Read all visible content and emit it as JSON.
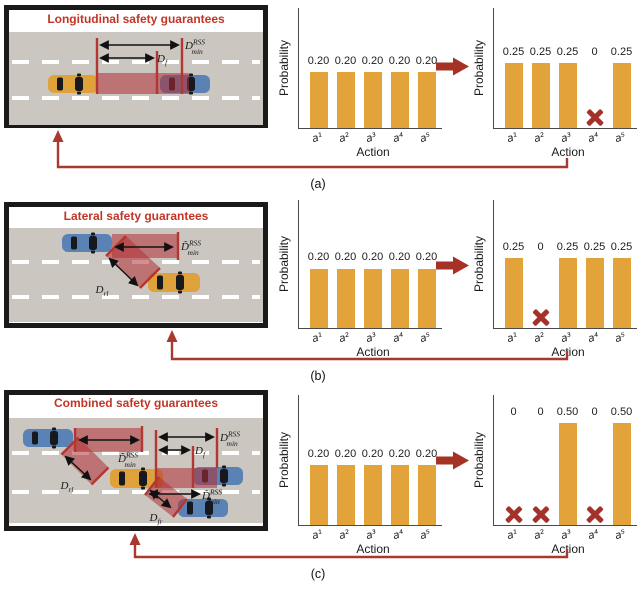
{
  "figure": {
    "captions": {
      "a": "(a)",
      "b": "(b)",
      "c": "(c)"
    },
    "icons": {
      "mask": "x-mark-icon",
      "transform": "arrow-right-icon",
      "ego_pointer": "arrow-up-icon"
    }
  },
  "panels": [
    {
      "title": "Longitudinal safety guarantees",
      "caption": "(a)",
      "labels": {
        "d_min_rss": {
          "base": "D",
          "sup": "RSS",
          "sub": "min"
        },
        "d_f": {
          "base": "D",
          "sub": "f"
        }
      }
    },
    {
      "title": "Lateral safety guarantees",
      "caption": "(b)",
      "labels": {
        "d_min_rss_lat": {
          "base": "D̃",
          "sup": "RSS",
          "sub": "min"
        },
        "d_rl": {
          "base": "D",
          "sub": "rl"
        }
      }
    },
    {
      "title": "Combined safety guarantees",
      "caption": "(c)",
      "labels": {
        "d_min_rss_lat_rear": {
          "base": "D̃",
          "sup": "RSS",
          "sub": "min"
        },
        "d_rl": {
          "base": "D",
          "sub": "rl"
        },
        "d_min_rss_front": {
          "base": "D",
          "sup": "RSS",
          "sub": "min"
        },
        "d_f": {
          "base": "D",
          "sub": "f"
        },
        "d_min_rss_lat_front": {
          "base": "D̃",
          "sup": "RSS",
          "sub": "min"
        },
        "d_fr": {
          "base": "D",
          "sub": "fr"
        }
      }
    }
  ],
  "chart_data": [
    {
      "id": "a-before",
      "type": "bar",
      "title": "",
      "xlabel": "Action",
      "ylabel": "Probability",
      "categories": [
        "a¹",
        "a²",
        "a³",
        "a⁴",
        "a⁵"
      ],
      "values": [
        0.2,
        0.2,
        0.2,
        0.2,
        0.2
      ],
      "value_labels": [
        "0.20",
        "0.20",
        "0.20",
        "0.20",
        "0.20"
      ],
      "masked_indices": [],
      "ylim": [
        0,
        0.43
      ],
      "grid": false
    },
    {
      "id": "a-after",
      "type": "bar",
      "title": "",
      "xlabel": "Action",
      "ylabel": "Probability",
      "categories": [
        "a¹",
        "a²",
        "a³",
        "a⁴",
        "a⁵"
      ],
      "values": [
        0.25,
        0.25,
        0.25,
        0,
        0.25
      ],
      "value_labels": [
        "0.25",
        "0.25",
        "0.25",
        "0",
        "0.25"
      ],
      "masked_indices": [
        3
      ],
      "ylim": [
        0,
        0.46
      ],
      "grid": false
    },
    {
      "id": "b-before",
      "type": "bar",
      "title": "",
      "xlabel": "Action",
      "ylabel": "Probability",
      "categories": [
        "a¹",
        "a²",
        "a³",
        "a⁴",
        "a⁵"
      ],
      "values": [
        0.2,
        0.2,
        0.2,
        0.2,
        0.2
      ],
      "value_labels": [
        "0.20",
        "0.20",
        "0.20",
        "0.20",
        "0.20"
      ],
      "masked_indices": [],
      "ylim": [
        0,
        0.43
      ],
      "grid": false
    },
    {
      "id": "b-after",
      "type": "bar",
      "title": "",
      "xlabel": "Action",
      "ylabel": "Probability",
      "categories": [
        "a¹",
        "a²",
        "a³",
        "a⁴",
        "a⁵"
      ],
      "values": [
        0.25,
        0,
        0.25,
        0.25,
        0.25
      ],
      "value_labels": [
        "0.25",
        "0",
        "0.25",
        "0.25",
        "0.25"
      ],
      "masked_indices": [
        1
      ],
      "ylim": [
        0,
        0.46
      ],
      "grid": false
    },
    {
      "id": "c-before",
      "type": "bar",
      "title": "",
      "xlabel": "Action",
      "ylabel": "Probability",
      "categories": [
        "a¹",
        "a²",
        "a³",
        "a⁴",
        "a⁵"
      ],
      "values": [
        0.2,
        0.2,
        0.2,
        0.2,
        0.2
      ],
      "value_labels": [
        "0.20",
        "0.20",
        "0.20",
        "0.20",
        "0.20"
      ],
      "masked_indices": [],
      "ylim": [
        0,
        0.43
      ],
      "grid": false
    },
    {
      "id": "c-after",
      "type": "bar",
      "title": "",
      "xlabel": "Action",
      "ylabel": "Probability",
      "categories": [
        "a¹",
        "a²",
        "a³",
        "a⁴",
        "a⁵"
      ],
      "values": [
        0,
        0,
        0.5,
        0,
        0.5
      ],
      "value_labels": [
        "0",
        "0",
        "0.50",
        "0",
        "0.50"
      ],
      "masked_indices": [
        0,
        1,
        3
      ],
      "ylim": [
        0,
        0.64
      ],
      "grid": false
    }
  ],
  "style": {
    "bar_color": "#E3A33B",
    "mask_color": "#A5322A",
    "connector_color": "#A8392E",
    "arrow_color": "#A63226",
    "title_color": "#C13527",
    "road_color": "#CBC6C0",
    "zone_color": "rgba(178,48,52,0.55)",
    "zone_line_color": "#B23730",
    "car_yellow": "#DFA23B",
    "car_blue": "#5B82B4",
    "car_window": "#16191E",
    "axis_color": "#4A4A4A",
    "text_color": "#1B1B1B"
  }
}
